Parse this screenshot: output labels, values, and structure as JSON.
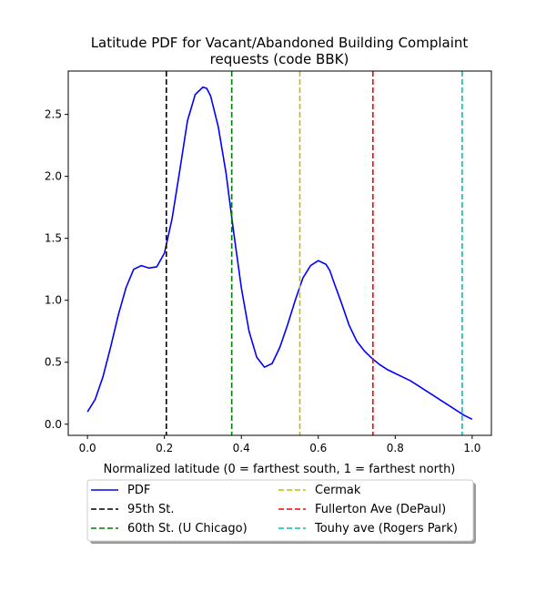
{
  "chart_data": {
    "type": "line",
    "title_line1": "Latitude PDF for Vacant/Abandoned Building Complaint",
    "title_line2": "requests (code BBK)",
    "xlabel": "Normalized latitude (0 = farthest south, 1 = farthest north)",
    "ylabel": "",
    "xlim": [
      -0.05,
      1.05
    ],
    "ylim": [
      -0.09,
      2.85
    ],
    "xticks": [
      0.0,
      0.2,
      0.4,
      0.6,
      0.8,
      1.0
    ],
    "xtick_labels": [
      "0.0",
      "0.2",
      "0.4",
      "0.6",
      "0.8",
      "1.0"
    ],
    "yticks": [
      0.0,
      0.5,
      1.0,
      1.5,
      2.0,
      2.5
    ],
    "ytick_labels": [
      "0.0",
      "0.5",
      "1.0",
      "1.5",
      "2.0",
      "2.5"
    ],
    "grid": false,
    "legend_placement": "below",
    "series": [
      {
        "name": "PDF",
        "color": "#0000ff",
        "x": [
          0.0,
          0.02,
          0.04,
          0.06,
          0.08,
          0.1,
          0.12,
          0.14,
          0.16,
          0.18,
          0.2,
          0.22,
          0.24,
          0.26,
          0.28,
          0.3,
          0.31,
          0.32,
          0.34,
          0.36,
          0.38,
          0.4,
          0.42,
          0.44,
          0.46,
          0.48,
          0.5,
          0.52,
          0.54,
          0.56,
          0.58,
          0.6,
          0.62,
          0.63,
          0.64,
          0.66,
          0.68,
          0.7,
          0.72,
          0.74,
          0.76,
          0.78,
          0.8,
          0.82,
          0.84,
          0.86,
          0.88,
          0.9,
          0.92,
          0.94,
          0.96,
          0.98,
          1.0
        ],
        "y": [
          0.1,
          0.2,
          0.38,
          0.62,
          0.88,
          1.1,
          1.25,
          1.28,
          1.26,
          1.27,
          1.38,
          1.66,
          2.05,
          2.45,
          2.66,
          2.72,
          2.71,
          2.65,
          2.4,
          2.03,
          1.55,
          1.1,
          0.75,
          0.54,
          0.46,
          0.49,
          0.62,
          0.8,
          1.0,
          1.18,
          1.28,
          1.32,
          1.29,
          1.24,
          1.15,
          0.98,
          0.8,
          0.67,
          0.59,
          0.53,
          0.48,
          0.44,
          0.41,
          0.38,
          0.35,
          0.31,
          0.27,
          0.23,
          0.19,
          0.15,
          0.11,
          0.07,
          0.04
        ]
      }
    ],
    "vlines": [
      {
        "name": "95th St.",
        "x": 0.205,
        "color": "#000000"
      },
      {
        "name": "60th St. (U Chicago)",
        "x": 0.375,
        "color": "#008000"
      },
      {
        "name": "Cermak",
        "x": 0.552,
        "color": "#bfbf00"
      },
      {
        "name": "Fullerton Ave (DePaul)",
        "x": 0.742,
        "color": "#ff0000"
      },
      {
        "name": "Touhy ave (Rogers Park)",
        "x": 0.974,
        "color": "#00bfbf"
      }
    ],
    "legend": [
      {
        "label": "PDF",
        "color": "#0000ff",
        "style": "solid"
      },
      {
        "label": "95th St.",
        "color": "#000000",
        "style": "dashed"
      },
      {
        "label": "60th St. (U Chicago)",
        "color": "#008000",
        "style": "dashed"
      },
      {
        "label": "Cermak",
        "color": "#bfbf00",
        "style": "dashed"
      },
      {
        "label": "Fullerton Ave (DePaul)",
        "color": "#ff0000",
        "style": "dashed"
      },
      {
        "label": "Touhy ave (Rogers Park)",
        "color": "#00bfbf",
        "style": "dashed"
      }
    ]
  }
}
